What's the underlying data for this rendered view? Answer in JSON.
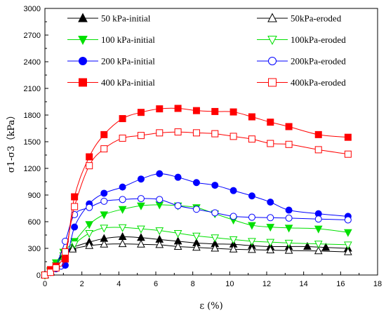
{
  "chart_data": {
    "type": "line",
    "title": "",
    "xlabel": "ε (%)",
    "ylabel": "σ1-σ3（kPa）",
    "xlim": [
      0,
      18
    ],
    "ylim": [
      0,
      3000
    ],
    "xticks": [
      0,
      2,
      4,
      6,
      8,
      10,
      12,
      14,
      16,
      18
    ],
    "yticks": [
      0,
      300,
      600,
      900,
      1200,
      1500,
      1800,
      2100,
      2400,
      2700,
      3000
    ],
    "grid": false,
    "legend_position": "top",
    "series": [
      {
        "name": "50 kPa-initial",
        "color": "#000000",
        "marker": "triangle-up",
        "filled": true,
        "x": [
          0,
          0.3,
          0.6,
          1.0,
          1.5,
          2.4,
          3.2,
          4.2,
          5.2,
          6.2,
          7.2,
          8.2,
          9.2,
          10.2,
          11.2,
          12.2,
          13.2,
          14.2,
          15.2,
          16.4
        ],
        "y": [
          0,
          40,
          120,
          250,
          310,
          370,
          410,
          430,
          420,
          400,
          380,
          360,
          350,
          345,
          330,
          320,
          320,
          320,
          310,
          300
        ]
      },
      {
        "name": "50kPa-eroded",
        "color": "#000000",
        "marker": "triangle-up",
        "filled": false,
        "x": [
          0,
          0.3,
          0.6,
          1.0,
          1.5,
          2.4,
          3.2,
          4.2,
          5.2,
          6.2,
          7.2,
          8.2,
          9.2,
          10.2,
          11.2,
          12.2,
          13.2,
          14.8,
          16.4
        ],
        "y": [
          0,
          30,
          110,
          210,
          290,
          330,
          345,
          350,
          345,
          340,
          320,
          310,
          300,
          290,
          285,
          280,
          275,
          270,
          260
        ]
      },
      {
        "name": "100 kPa-initial",
        "color": "#00e000",
        "marker": "triangle-down",
        "filled": true,
        "x": [
          0,
          0.3,
          0.6,
          1.0,
          1.6,
          2.4,
          3.2,
          4.2,
          5.2,
          6.2,
          7.2,
          8.2,
          9.2,
          10.2,
          11.2,
          12.2,
          13.2,
          14.8,
          16.4
        ],
        "y": [
          0,
          50,
          140,
          260,
          380,
          570,
          680,
          740,
          780,
          790,
          780,
          760,
          690,
          620,
          560,
          540,
          530,
          520,
          480
        ]
      },
      {
        "name": "100kPa-eroded",
        "color": "#00e000",
        "marker": "triangle-down",
        "filled": false,
        "x": [
          0,
          0.3,
          0.6,
          1.0,
          1.6,
          2.4,
          3.2,
          4.2,
          5.2,
          6.2,
          7.2,
          8.2,
          9.2,
          10.2,
          11.2,
          12.2,
          13.2,
          14.8,
          16.4
        ],
        "y": [
          0,
          40,
          110,
          220,
          350,
          470,
          530,
          535,
          520,
          500,
          470,
          440,
          420,
          400,
          380,
          370,
          360,
          350,
          340
        ]
      },
      {
        "name": "200 kPa-initial",
        "color": "#0000ff",
        "marker": "circle",
        "filled": true,
        "x": [
          0,
          0.3,
          0.6,
          1.1,
          1.6,
          2.4,
          3.2,
          4.2,
          5.2,
          6.2,
          7.2,
          8.2,
          9.2,
          10.2,
          11.2,
          12.2,
          13.2,
          14.8,
          16.4
        ],
        "y": [
          0,
          40,
          70,
          110,
          540,
          800,
          920,
          990,
          1080,
          1140,
          1100,
          1040,
          1010,
          950,
          890,
          820,
          730,
          690,
          660
        ]
      },
      {
        "name": "200kPa-eroded",
        "color": "#0000ff",
        "marker": "circle",
        "filled": false,
        "x": [
          0,
          0.3,
          0.6,
          1.1,
          1.6,
          2.4,
          3.2,
          4.2,
          5.2,
          6.2,
          7.2,
          8.2,
          9.2,
          10.2,
          11.2,
          12.2,
          13.2,
          14.8,
          16.4
        ],
        "y": [
          0,
          30,
          100,
          380,
          680,
          760,
          830,
          850,
          860,
          850,
          780,
          740,
          700,
          660,
          650,
          645,
          640,
          630,
          620
        ]
      },
      {
        "name": "400 kPa-initial",
        "color": "#ff0000",
        "marker": "square",
        "filled": true,
        "x": [
          0,
          0.3,
          0.6,
          1.1,
          1.6,
          2.4,
          3.2,
          4.2,
          5.2,
          6.2,
          7.2,
          8.2,
          9.2,
          10.2,
          11.2,
          12.2,
          13.2,
          14.8,
          16.4
        ],
        "y": [
          0,
          60,
          100,
          180,
          880,
          1330,
          1580,
          1760,
          1830,
          1870,
          1875,
          1850,
          1840,
          1835,
          1780,
          1720,
          1670,
          1580,
          1550
        ]
      },
      {
        "name": "400kPa-eroded",
        "color": "#ff0000",
        "marker": "square",
        "filled": false,
        "x": [
          0,
          0.3,
          0.6,
          1.1,
          1.6,
          2.4,
          3.2,
          4.2,
          5.2,
          6.2,
          7.2,
          8.2,
          9.2,
          10.2,
          11.2,
          12.2,
          13.2,
          14.8,
          16.4
        ],
        "y": [
          0,
          30,
          80,
          260,
          770,
          1230,
          1420,
          1540,
          1570,
          1600,
          1610,
          1600,
          1590,
          1560,
          1530,
          1480,
          1470,
          1410,
          1360
        ]
      }
    ]
  }
}
